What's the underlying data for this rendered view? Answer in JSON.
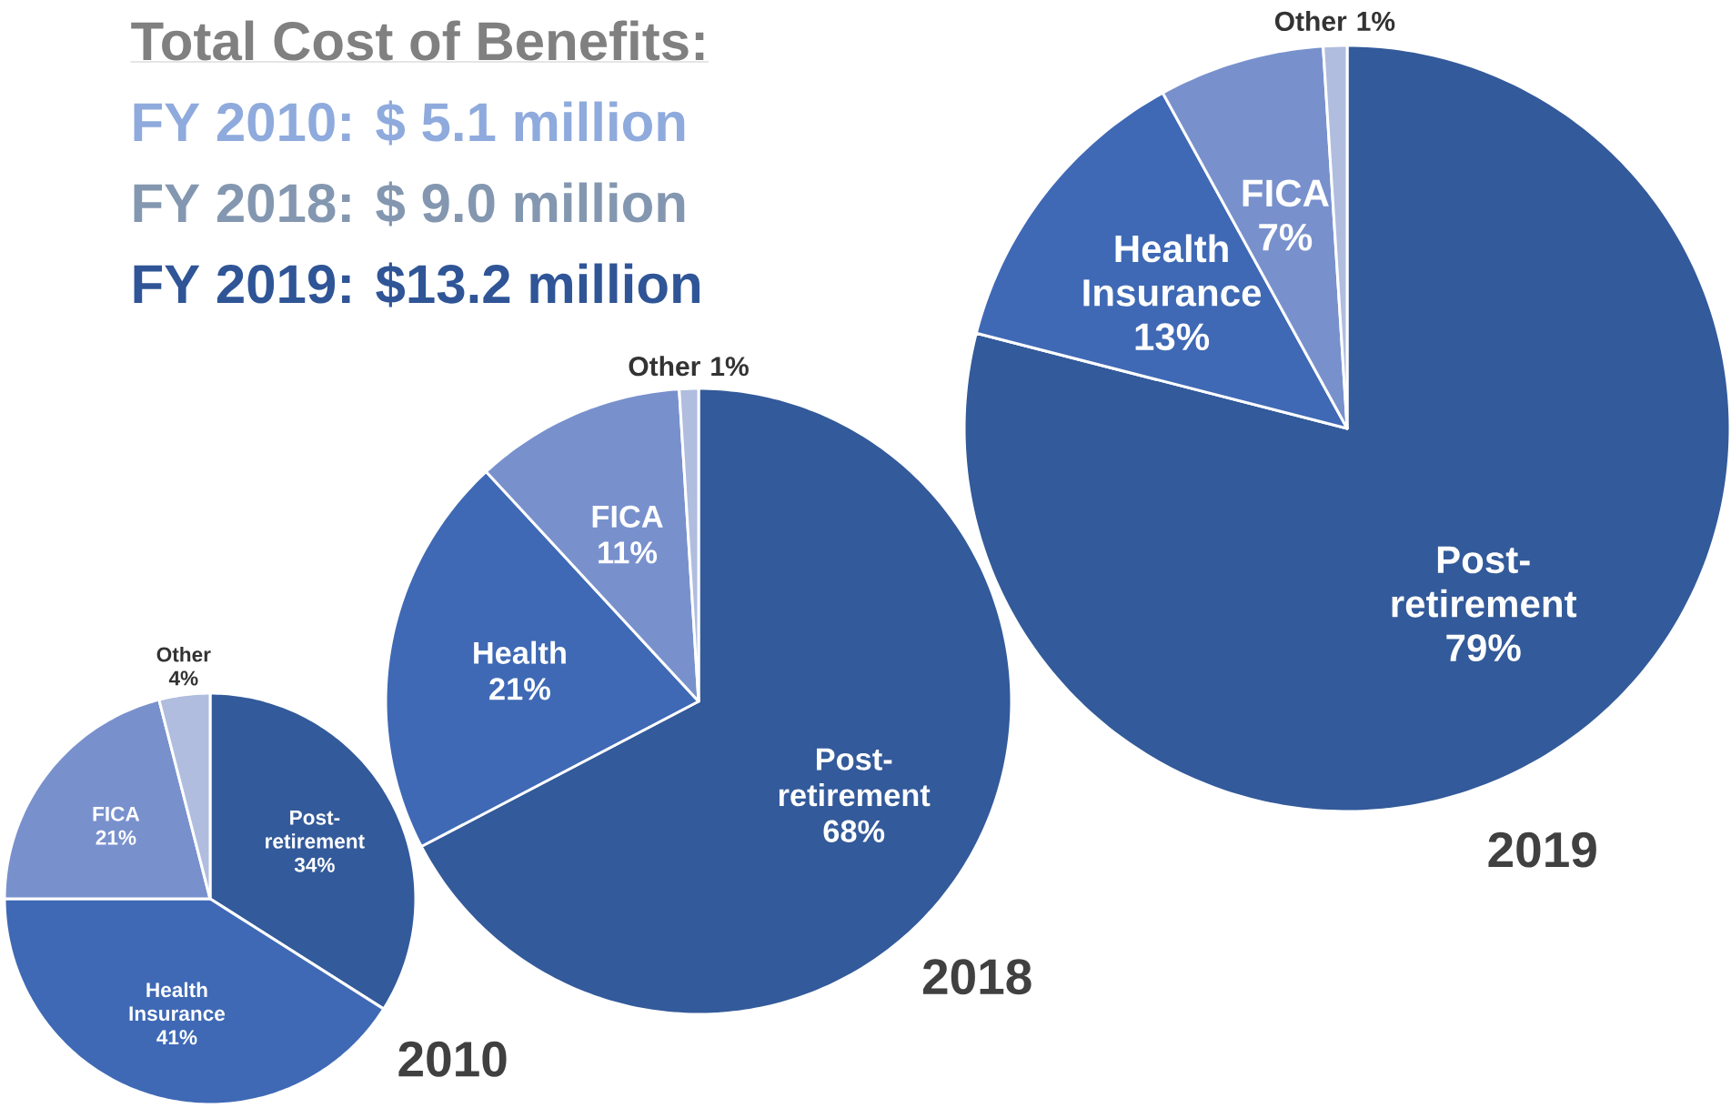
{
  "chart_data": [
    {
      "type": "other",
      "title": "Total Cost of Benefits:",
      "annotations": [
        "FY 2010:  $ 5.1 million",
        "FY 2018:  $ 9.0 million",
        "FY 2019:  $13.2 million"
      ],
      "colors": [
        "#8faadc",
        "#8497b0",
        "#2f5597"
      ]
    },
    {
      "type": "pie",
      "title": "2010",
      "categories": [
        "Post-retirement",
        "Health Insurance",
        "FICA",
        "Other"
      ],
      "values": [
        34,
        41,
        21,
        4
      ],
      "value_labels": [
        "34%",
        "41%",
        "21%",
        "4%"
      ],
      "colors": [
        "#335a9a",
        "#3f69b5",
        "#7891cd",
        "#b0bddf"
      ]
    },
    {
      "type": "pie",
      "title": "2018",
      "categories": [
        "Post-retirement",
        "Health",
        "FICA",
        "Other"
      ],
      "values": [
        68,
        21,
        11,
        1
      ],
      "value_labels": [
        "68%",
        "21%",
        "11%",
        "1%"
      ],
      "colors": [
        "#335a9a",
        "#3f69b5",
        "#7891cd",
        "#b0bddf"
      ]
    },
    {
      "type": "pie",
      "title": "2019",
      "categories": [
        "Post-retirement",
        "Health Insurance",
        "FICA",
        "Other"
      ],
      "values": [
        79,
        13,
        7,
        1
      ],
      "value_labels": [
        "79%",
        "13%",
        "7%",
        "1%"
      ],
      "colors": [
        "#335a9a",
        "#3f69b5",
        "#7891cd",
        "#b0bddf"
      ]
    }
  ]
}
